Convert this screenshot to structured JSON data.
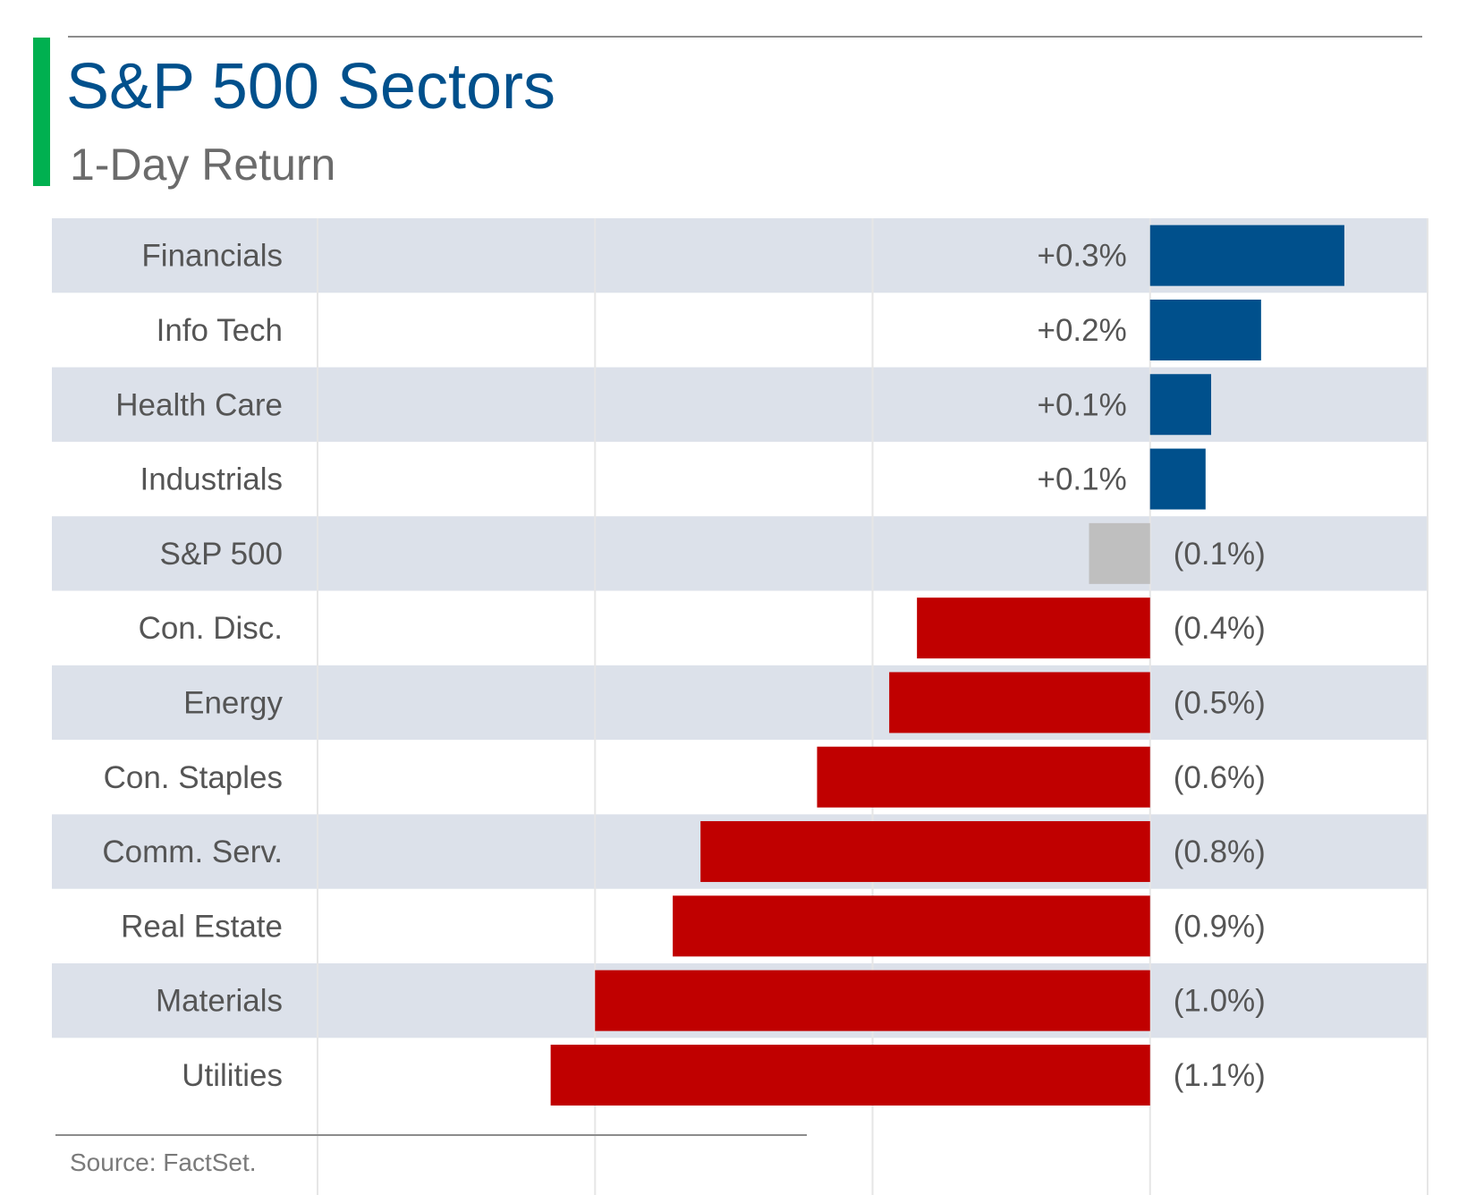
{
  "header": {
    "title": "S&P 500 Sectors",
    "subtitle": "1-Day Return"
  },
  "footer": {
    "source": "Source: FactSet."
  },
  "colors": {
    "accent": "#00b050",
    "title": "#00508c",
    "positive": "#00508c",
    "negative": "#c00000",
    "benchmark": "#bfbfbf",
    "band": "#dce1ea",
    "gridline": "#e6e6e6"
  },
  "chart_data": {
    "type": "bar",
    "orientation": "horizontal",
    "title": "S&P 500 Sectors",
    "subtitle": "1-Day Return",
    "categories": [
      "Financials",
      "Info Tech",
      "Health Care",
      "Industrials",
      "S&P 500",
      "Con. Disc.",
      "Energy",
      "Con. Staples",
      "Comm. Serv.",
      "Real Estate",
      "Materials",
      "Utilities"
    ],
    "values": [
      0.35,
      0.2,
      0.11,
      0.1,
      -0.11,
      -0.42,
      -0.47,
      -0.6,
      -0.81,
      -0.86,
      -1.0,
      -1.08
    ],
    "labels": [
      "+0.3%",
      "+0.2%",
      "+0.1%",
      "+0.1%",
      "(0.1%)",
      "(0.4%)",
      "(0.5%)",
      "(0.6%)",
      "(0.8%)",
      "(0.9%)",
      "(1.0%)",
      "(1.1%)"
    ],
    "benchmark": "S&P 500",
    "xlim": [
      -1.5,
      0.5
    ],
    "grid": true,
    "legend": "none"
  }
}
